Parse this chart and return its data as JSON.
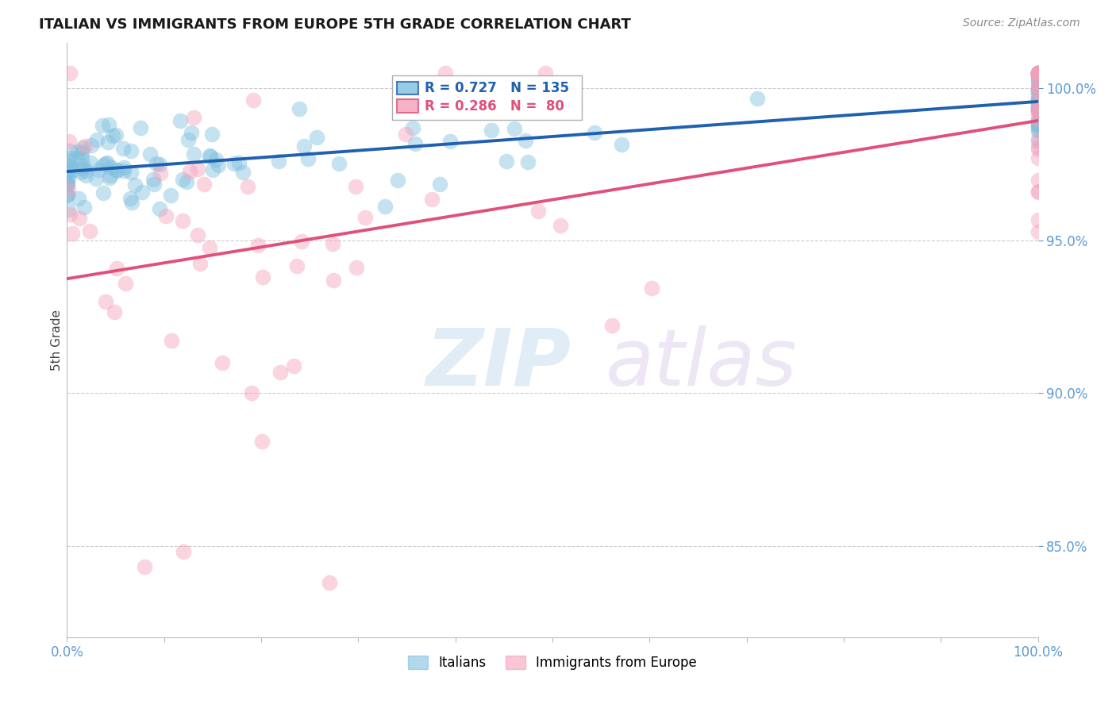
{
  "title": "ITALIAN VS IMMIGRANTS FROM EUROPE 5TH GRADE CORRELATION CHART",
  "source": "Source: ZipAtlas.com",
  "ylabel": "5th Grade",
  "legend_italians": "Italians",
  "legend_immigrants": "Immigrants from Europe",
  "r_italians": 0.727,
  "n_italians": 135,
  "r_immigrants": 0.286,
  "n_immigrants": 80,
  "blue_color": "#7fbfdf",
  "pink_color": "#f4a0b8",
  "blue_line_color": "#2060b0",
  "pink_line_color": "#e0507a",
  "watermark_zip": "ZIP",
  "watermark_atlas": "atlas",
  "background_color": "#ffffff",
  "grid_color": "#cccccc",
  "ytick_values": [
    0.85,
    0.9,
    0.95,
    1.0
  ],
  "ytick_labels": [
    "85.0%",
    "90.0%",
    "95.0%",
    "100.0%"
  ],
  "ylim_low": 0.82,
  "ylim_high": 1.015,
  "xlim_low": 0.0,
  "xlim_high": 1.0
}
